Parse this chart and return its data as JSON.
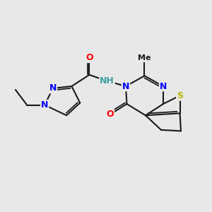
{
  "background_color": "#e8e8e8",
  "atom_colors": {
    "C": "#1a1a1a",
    "N": "#0000ff",
    "O": "#ff0000",
    "S": "#b8b800",
    "H": "#40a0a0"
  },
  "bond_color": "#1a1a1a",
  "bond_width": 1.5,
  "dbl_sep": 0.09,
  "font_size_atom": 9,
  "font_size_small": 8
}
